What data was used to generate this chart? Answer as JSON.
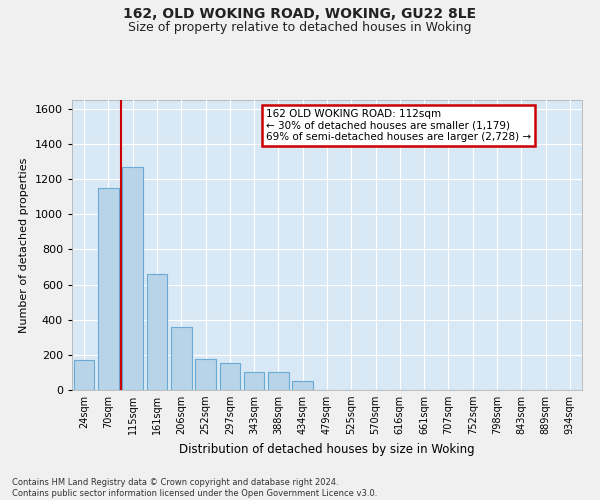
{
  "title1": "162, OLD WOKING ROAD, WOKING, GU22 8LE",
  "title2": "Size of property relative to detached houses in Woking",
  "xlabel": "Distribution of detached houses by size in Woking",
  "ylabel": "Number of detached properties",
  "categories": [
    "24sqm",
    "70sqm",
    "115sqm",
    "161sqm",
    "206sqm",
    "252sqm",
    "297sqm",
    "343sqm",
    "388sqm",
    "434sqm",
    "479sqm",
    "525sqm",
    "570sqm",
    "616sqm",
    "661sqm",
    "707sqm",
    "752sqm",
    "798sqm",
    "843sqm",
    "889sqm",
    "934sqm"
  ],
  "values": [
    170,
    1150,
    1270,
    660,
    360,
    175,
    155,
    100,
    100,
    50,
    0,
    0,
    0,
    0,
    0,
    0,
    0,
    0,
    0,
    0,
    0
  ],
  "bar_color": "#b8d4e8",
  "bar_edge_color": "#6aaad4",
  "property_line_x": 1.5,
  "annotation_line1": "162 OLD WOKING ROAD: 112sqm",
  "annotation_line2": "← 30% of detached houses are smaller (1,179)",
  "annotation_line3": "69% of semi-detached houses are larger (2,728) →",
  "annotation_box_facecolor": "#ffffff",
  "annotation_box_edgecolor": "#cc0000",
  "property_line_color": "#cc0000",
  "ylim_min": 0,
  "ylim_max": 1650,
  "yticks": [
    0,
    200,
    400,
    600,
    800,
    1000,
    1200,
    1400,
    1600
  ],
  "grid_color": "#ffffff",
  "bg_color": "#d8e8f4",
  "fig_bg_color": "#f0f0f0",
  "footer1": "Contains HM Land Registry data © Crown copyright and database right 2024.",
  "footer2": "Contains public sector information licensed under the Open Government Licence v3.0."
}
